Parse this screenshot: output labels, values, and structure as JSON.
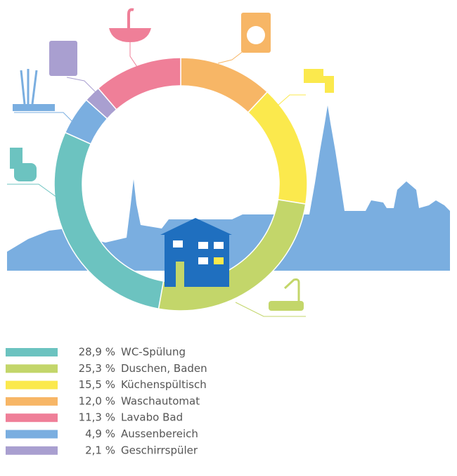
{
  "chart_data": {
    "type": "pie",
    "categories": [
      "WC-Spülung",
      "Duschen, Baden",
      "Küchenspültisch",
      "Waschautomat",
      "Lavabo Bad",
      "Aussenbereich",
      "Geschirrspüler"
    ],
    "values": [
      28.9,
      25.3,
      15.5,
      12.0,
      11.3,
      4.9,
      2.1
    ],
    "value_labels": [
      "28,9 %",
      "25,3 %",
      "15,5 %",
      "12,0 %",
      "11,3 %",
      "4,9 %",
      "2,1 %"
    ],
    "colors": [
      "#6cc3c0",
      "#c3d66a",
      "#fbe94d",
      "#f7b666",
      "#ef7f98",
      "#7aaee0",
      "#a99fd0"
    ],
    "donut": true
  }
}
